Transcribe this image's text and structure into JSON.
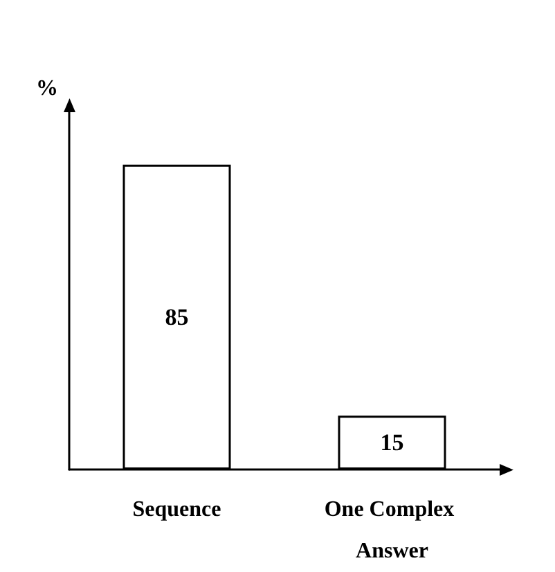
{
  "chart_data": {
    "type": "bar",
    "ylabel": "%",
    "categories": [
      "Sequence",
      "One Complex Answer"
    ],
    "values": [
      85,
      15
    ],
    "color": "#ffffff",
    "data_labels": true,
    "tick_labels": "x",
    "grid": false
  }
}
